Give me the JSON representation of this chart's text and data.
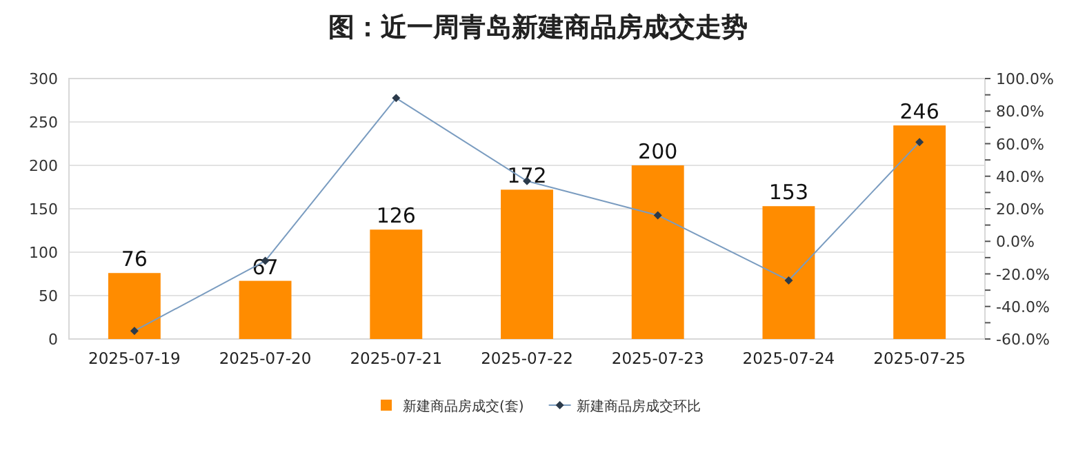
{
  "chart_data": {
    "type": "bar",
    "title": "图：近一周青岛新建商品房成交走势",
    "categories": [
      "2025-07-19",
      "2025-07-20",
      "2025-07-21",
      "2025-07-22",
      "2025-07-23",
      "2025-07-24",
      "2025-07-25"
    ],
    "series": [
      {
        "name": "新建商品房成交(套)",
        "color": "#ff8c00",
        "values": [
          76,
          67,
          126,
          172,
          200,
          153,
          246
        ],
        "value_labels": [
          "76",
          "67",
          "126",
          "172",
          "200",
          "153",
          "246"
        ]
      },
      {
        "name": "新建商品房成交环比",
        "type": "line",
        "axis": "y2",
        "color": "#7a9cc0",
        "marker": "diamond",
        "values": [
          -55,
          -12,
          88,
          37,
          16,
          -24,
          61
        ]
      }
    ],
    "ylim": [
      0,
      300
    ],
    "yticks": [
      0,
      50,
      100,
      150,
      200,
      250,
      300
    ],
    "y2lim": [
      -60,
      100
    ],
    "y2ticks": [
      {
        "value": -60,
        "label": "-60.0%"
      },
      {
        "value": -50,
        "label": null
      },
      {
        "value": -40,
        "label": "-40.0%"
      },
      {
        "value": -30,
        "label": null
      },
      {
        "value": -20,
        "label": "-20.0%"
      },
      {
        "value": -10,
        "label": null
      },
      {
        "value": 0,
        "label": "0.0%"
      },
      {
        "value": 10,
        "label": null
      },
      {
        "value": 20,
        "label": "20.0%"
      },
      {
        "value": 30,
        "label": null
      },
      {
        "value": 40,
        "label": "40.0%"
      },
      {
        "value": 50,
        "label": null
      },
      {
        "value": 60,
        "label": "60.0%"
      },
      {
        "value": 70,
        "label": null
      },
      {
        "value": 80,
        "label": "80.0%"
      },
      {
        "value": 90,
        "label": null
      },
      {
        "value": 100,
        "label": "100.0%"
      }
    ],
    "grid": "y",
    "legend": "bottom"
  }
}
